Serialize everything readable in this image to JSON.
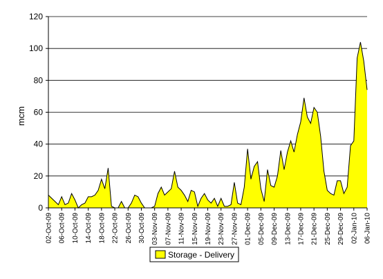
{
  "chart_data": {
    "type": "area",
    "title": "",
    "xlabel": "",
    "ylabel": "mcm",
    "ylim": [
      0,
      120
    ],
    "yticks": [
      0,
      20,
      40,
      60,
      80,
      100,
      120
    ],
    "grid": true,
    "legend": "bottom-center",
    "x_tick_labels": [
      "02-Oct-09",
      "06-Oct-09",
      "10-Oct-09",
      "14-Oct-09",
      "18-Oct-09",
      "22-Oct-09",
      "26-Oct-09",
      "30-Oct-09",
      "03-Nov-09",
      "07-Nov-09",
      "11-Nov-09",
      "15-Nov-09",
      "19-Nov-09",
      "23-Nov-09",
      "27-Nov-09",
      "01-Dec-09",
      "05-Dec-09",
      "09-Dec-09",
      "13-Dec-09",
      "17-Dec-09",
      "21-Dec-09",
      "25-Dec-09",
      "29-Dec-09",
      "02-Jan-10",
      "06-Jan-10"
    ],
    "x_start": "2009-10-02",
    "series": [
      {
        "name": "Storage - Delivery",
        "color": "#ffff00",
        "stroke": "#000000",
        "values": [
          8,
          6,
          4,
          2,
          7,
          2,
          3,
          9,
          5,
          0,
          2,
          3,
          7,
          7,
          8,
          11,
          18,
          12,
          25,
          1,
          0,
          0,
          4,
          0,
          0,
          3,
          8,
          7,
          3,
          0,
          0,
          0,
          1,
          9,
          13,
          8,
          10,
          12,
          23,
          13,
          11,
          8,
          4,
          11,
          10,
          1,
          6,
          9,
          5,
          3,
          6,
          1,
          6,
          1,
          1,
          2,
          16,
          3,
          2,
          13,
          37,
          18,
          26,
          29,
          12,
          4,
          24,
          14,
          13,
          20,
          36,
          24,
          35,
          42,
          35,
          46,
          54,
          69,
          57,
          53,
          63,
          60,
          45,
          23,
          11,
          9,
          8,
          17,
          17,
          9,
          13,
          39,
          42,
          94,
          104,
          92,
          74
        ]
      }
    ]
  }
}
